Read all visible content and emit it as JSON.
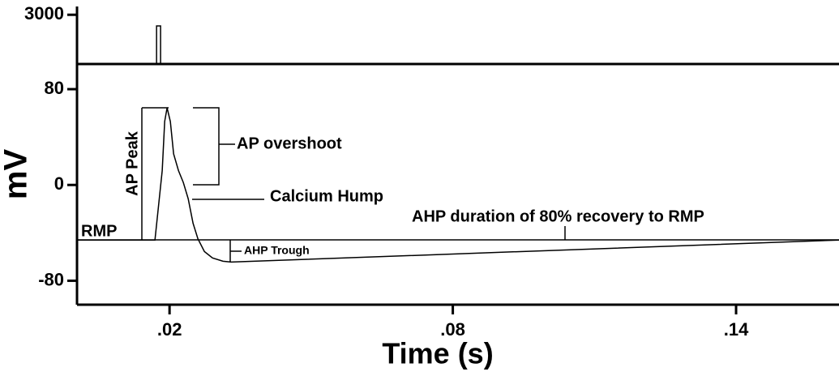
{
  "chart_data": [
    {
      "type": "line",
      "x": [
        0.0004,
        0.01725,
        0.01725,
        0.0181,
        0.0181,
        0.1618
      ],
      "series": [
        {
          "color": "#000000",
          "values": [
            0,
            0,
            2320,
            2320,
            0,
            0
          ]
        }
      ],
      "xlim": [
        0.0004,
        0.1618
      ],
      "ylim": [
        0,
        3900
      ],
      "yticks": [
        3000
      ]
    },
    {
      "type": "line",
      "xlabel": "Time (s)",
      "ylabel": "mV",
      "x": [
        0.0004,
        0.01691,
        0.01845,
        0.01897,
        0.01948,
        0.02017,
        0.02086,
        0.02189,
        0.02292,
        0.02395,
        0.02498,
        0.02601,
        0.02738,
        0.0291,
        0.03133,
        0.03305,
        0.1618
      ],
      "series": [
        {
          "color": "#000000",
          "values": [
            -46,
            -46,
            12,
            53,
            64.4,
            53,
            26,
            12,
            2,
            -11.5,
            -32,
            -45,
            -55.6,
            -61,
            -63.7,
            -64.4,
            -46
          ]
        }
      ],
      "xlim": [
        0.0004,
        0.1618
      ],
      "xticks": [
        {
          "value": 0.02,
          "label": ".02"
        },
        {
          "value": 0.08,
          "label": ".08"
        },
        {
          "value": 0.14,
          "label": ".14"
        }
      ],
      "ylim": [
        -100,
        101
      ],
      "yticks": [
        80,
        0,
        -80
      ],
      "annotations": [
        "AP overshoot",
        "AP Peak",
        "Calcium Hump",
        "AHP duration of 80% recovery to RMP",
        "RMP",
        "AHP Trough"
      ]
    }
  ]
}
